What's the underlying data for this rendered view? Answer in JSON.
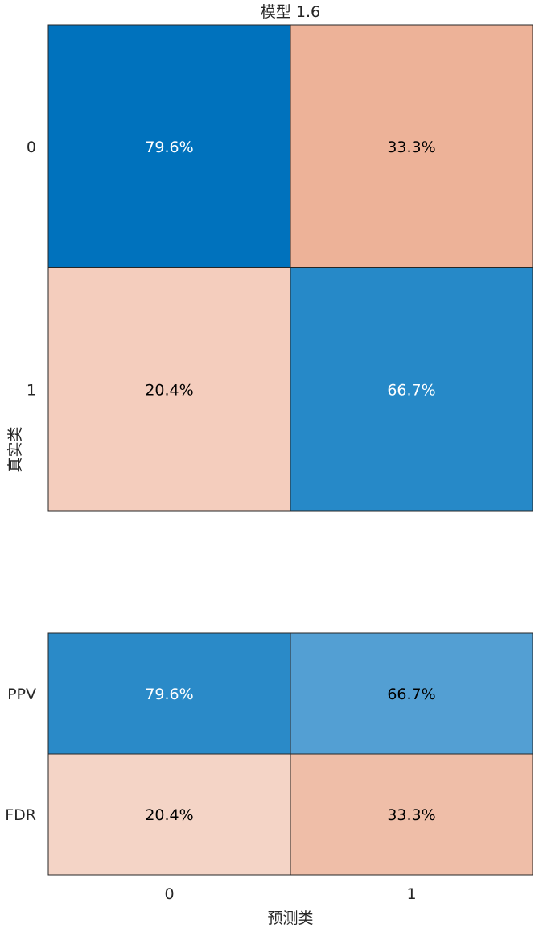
{
  "chart_data": [
    {
      "type": "heatmap",
      "title": "模型 1.6",
      "ylabel": "真实类",
      "xlabel": "",
      "row_labels": [
        "0",
        "1"
      ],
      "col_labels": [
        "0",
        "1"
      ],
      "cells": [
        [
          {
            "value": 79.6,
            "text": "79.6%",
            "fill": "#0072BD",
            "text_color": "#ffffff"
          },
          {
            "value": 33.3,
            "text": "33.3%",
            "fill": "#EDB298",
            "text_color": "#000000"
          }
        ],
        [
          {
            "value": 20.4,
            "text": "20.4%",
            "fill": "#F4CDBD",
            "text_color": "#000000"
          },
          {
            "value": 66.7,
            "text": "66.7%",
            "fill": "#2689C8",
            "text_color": "#ffffff"
          }
        ]
      ]
    },
    {
      "type": "heatmap",
      "title": "",
      "xlabel": "预测类",
      "ylabel": "",
      "row_labels": [
        "PPV",
        "FDR"
      ],
      "col_labels": [
        "0",
        "1"
      ],
      "cells": [
        [
          {
            "value": 79.6,
            "text": "79.6%",
            "fill": "#2A8AC8",
            "text_color": "#ffffff"
          },
          {
            "value": 66.7,
            "text": "66.7%",
            "fill": "#539FD3",
            "text_color": "#000000"
          }
        ],
        [
          {
            "value": 20.4,
            "text": "20.4%",
            "fill": "#F4D4C6",
            "text_color": "#000000"
          },
          {
            "value": 33.3,
            "text": "33.3%",
            "fill": "#EFBEA8",
            "text_color": "#000000"
          }
        ]
      ]
    }
  ],
  "colors": {
    "cell_border": "#262626",
    "text": "#262626"
  }
}
